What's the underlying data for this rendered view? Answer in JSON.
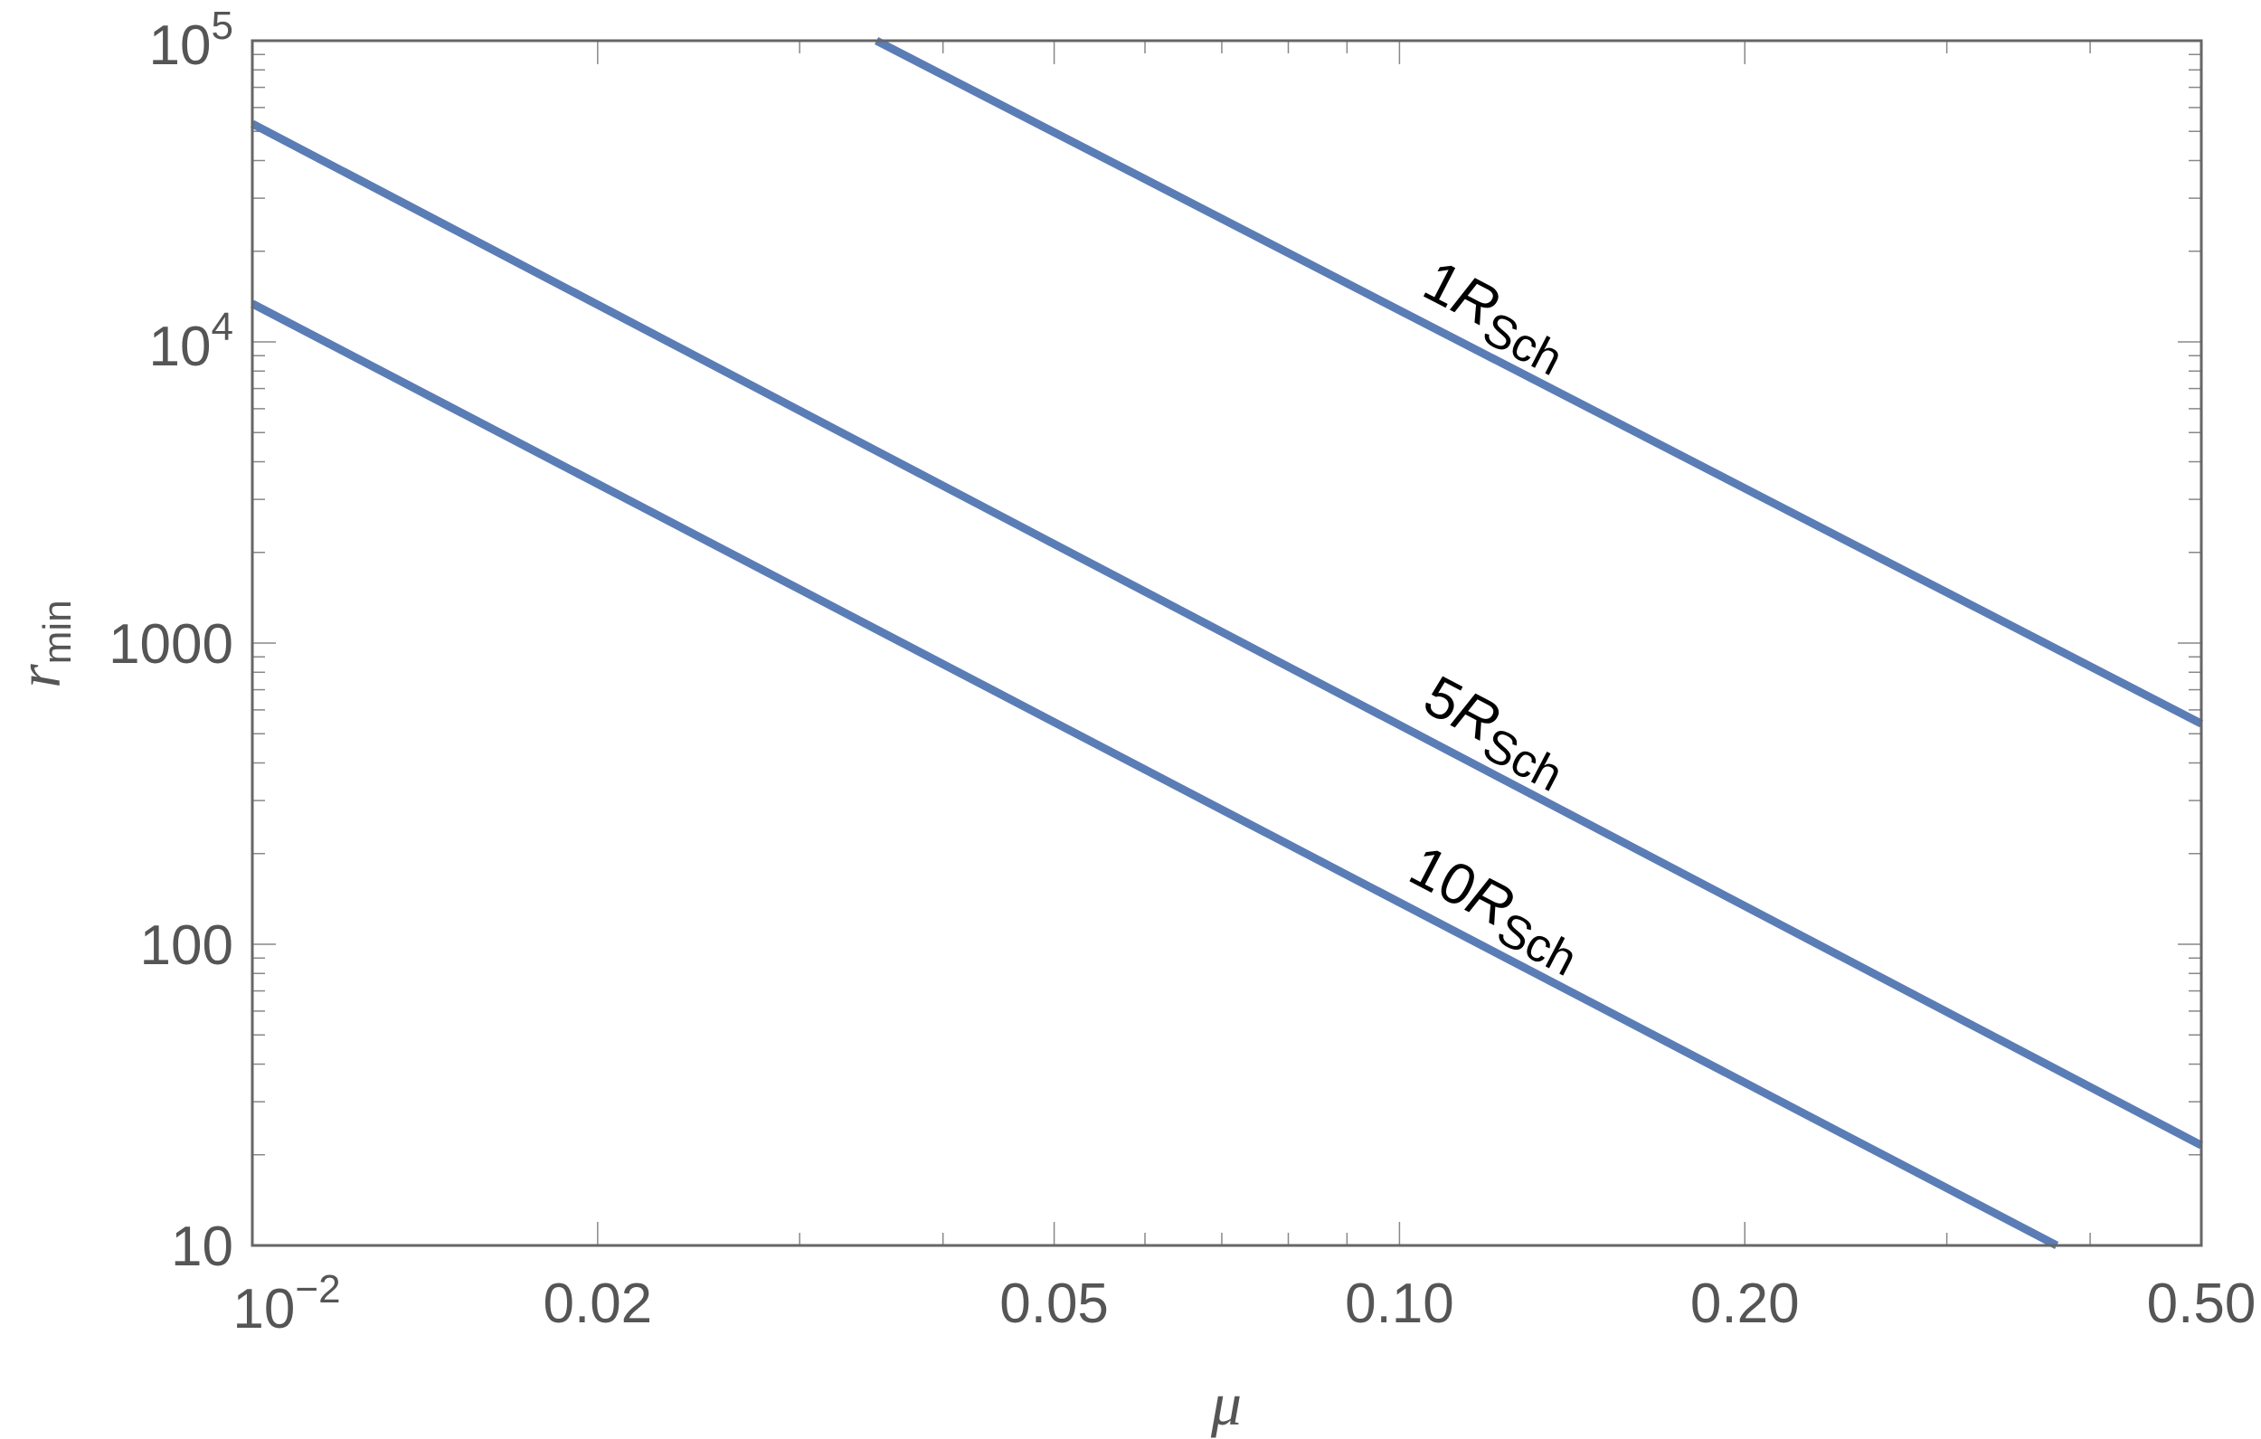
{
  "chart_data": {
    "type": "line",
    "title": "",
    "xlabel": "μ",
    "ylabel": {
      "base": "r",
      "subscript": "min"
    },
    "xscale": "log",
    "yscale": "log",
    "xlim": [
      0.01,
      0.5
    ],
    "ylim": [
      10,
      100000
    ],
    "grid": false,
    "x_ticks": [
      {
        "value": 0.01,
        "label": "10",
        "sup": "−2"
      },
      {
        "value": 0.02,
        "label": "0.02",
        "sup": ""
      },
      {
        "value": 0.05,
        "label": "0.05",
        "sup": ""
      },
      {
        "value": 0.1,
        "label": "0.10",
        "sup": ""
      },
      {
        "value": 0.2,
        "label": "0.20",
        "sup": ""
      },
      {
        "value": 0.5,
        "label": "0.50",
        "sup": ""
      }
    ],
    "y_ticks": [
      {
        "value": 10,
        "label": "10",
        "sup": ""
      },
      {
        "value": 100,
        "label": "100",
        "sup": ""
      },
      {
        "value": 1000,
        "label": "1000",
        "sup": ""
      },
      {
        "value": 10000,
        "label": "10",
        "sup": "4"
      },
      {
        "value": 100000,
        "label": "10",
        "sup": "5"
      }
    ],
    "series": [
      {
        "name": "1RSch",
        "label_num": "1",
        "label_R": "R",
        "label_sub": "Sch",
        "label_at_x": 0.117,
        "color": "#5b7db6",
        "x": [
          0.035,
          0.5
        ],
        "y": [
          100000,
          540
        ]
      },
      {
        "name": "5RSch",
        "label_num": "5",
        "label_R": "R",
        "label_sub": "Sch",
        "label_at_x": 0.117,
        "color": "#5b7db6",
        "x": [
          0.01,
          0.5
        ],
        "y": [
          53000,
          21.5
        ]
      },
      {
        "name": "10RSch",
        "label_num": "10",
        "label_R": "R",
        "label_sub": "Sch",
        "label_at_x": 0.117,
        "color": "#5b7db6",
        "x": [
          0.01,
          0.374
        ],
        "y": [
          13400,
          10
        ]
      }
    ]
  }
}
